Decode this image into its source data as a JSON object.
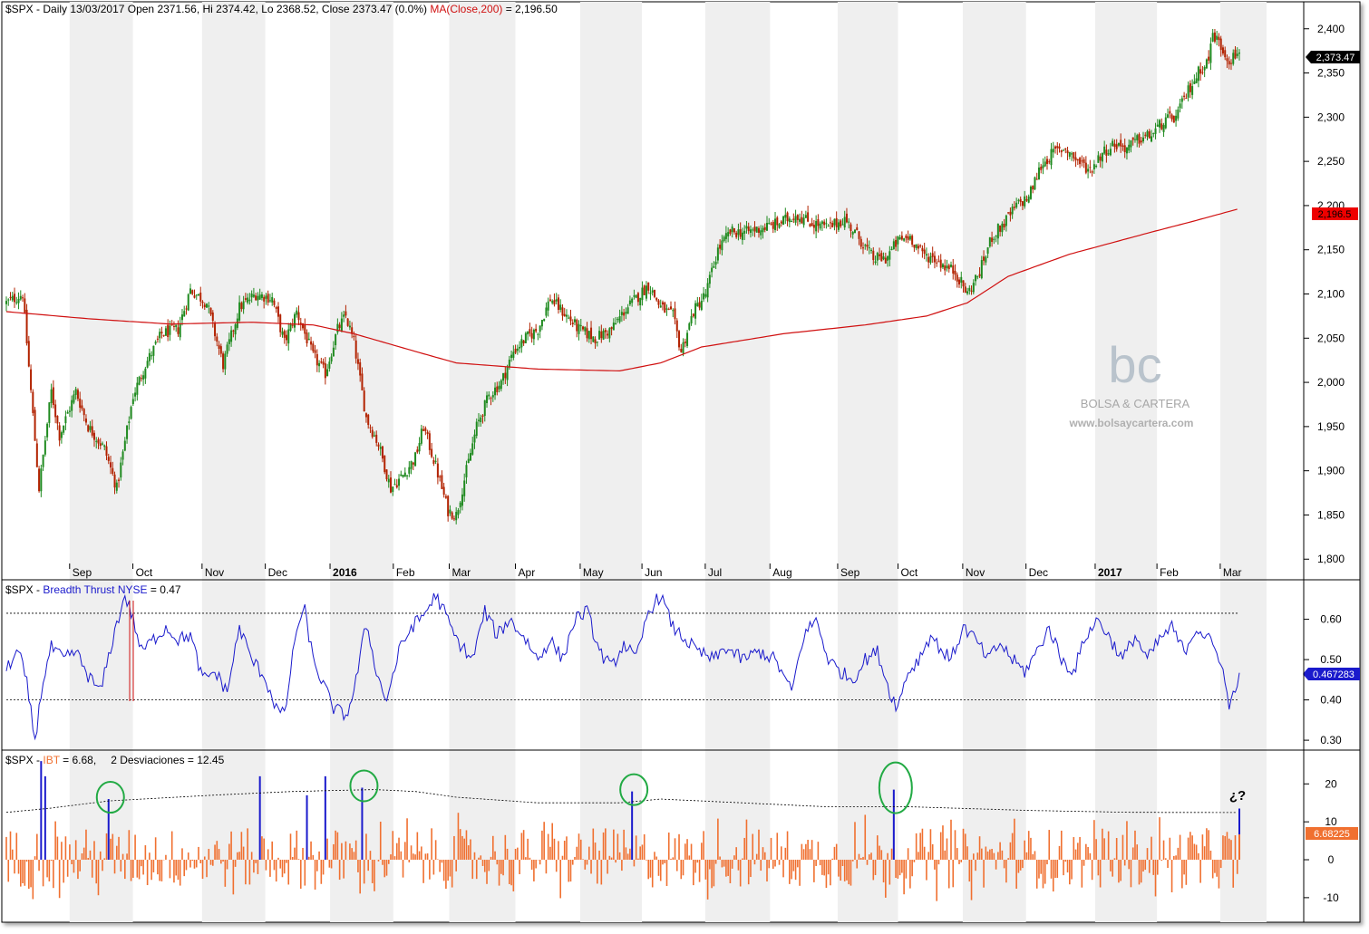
{
  "colors": {
    "up": "#1f8a1f",
    "down": "#b22200",
    "ma": "#d01010",
    "breadth": "#1a1acc",
    "ibt": "#f07030",
    "ibt_spike": "#1a1acc",
    "circle": "#22aa44",
    "band": "#efefef",
    "panel_border": "#000000"
  },
  "panel1": {
    "header_main": "$SPX - Daily 13/03/2017 Open 2371.56, Hi 2374.42, Lo 2368.52, Close 2373.47 (0.0%)",
    "header_ma": "MA(Close,200)",
    "header_ma_value": " = 2,196.50",
    "last_close_label": "2,373.47",
    "ma_label": "2,196.5",
    "watermark_logo": "bc",
    "watermark_name": "BOLSA & CARTERA",
    "watermark_url": "www.bolsaycartera.com"
  },
  "panel2": {
    "header_prefix": "$SPX - ",
    "header_series": "Breadth Thrust NYSE",
    "header_value": " = 0.47",
    "last_value_label": "0.467283"
  },
  "panel3": {
    "header_prefix": "$SPX - ",
    "header_series": "IBT",
    "header_value": " = 6.68,",
    "header_dev": "2 Desviaciones = 12.45",
    "last_value_label": "6.68225",
    "annotation": "¿?"
  },
  "chart_data": [
    {
      "type": "candlestick",
      "ylim": [
        1790,
        2410
      ],
      "yticks": [
        1800,
        1850,
        1900,
        1950,
        2000,
        2050,
        2100,
        2150,
        2200,
        2250,
        2300,
        2350,
        2400
      ],
      "ytick_labels": [
        "1,800",
        "1,850",
        "1,900",
        "1,950",
        "2,000",
        "2,050",
        "2,100",
        "2,150",
        "2,200",
        "2,250",
        "2,300",
        "2,350",
        "2,400"
      ],
      "x_labels": [
        "Sep",
        "Oct",
        "Nov",
        "Dec",
        "2016",
        "Feb",
        "Mar",
        "Apr",
        "May",
        "Jun",
        "Jul",
        "Aug",
        "Sep",
        "Oct",
        "Nov",
        "Dec",
        "2017",
        "Feb",
        "Mar"
      ],
      "x_labels_bold": [
        "2016",
        "2017"
      ],
      "series": [
        {
          "name": "$SPX",
          "close_path": [
            [
              0,
              2090
            ],
            [
              8,
              2100
            ],
            [
              16,
              1880
            ],
            [
              22,
              1990
            ],
            [
              26,
              1940
            ],
            [
              34,
              1990
            ],
            [
              40,
              1950
            ],
            [
              48,
              1925
            ],
            [
              54,
              1880
            ],
            [
              62,
              1985
            ],
            [
              68,
              2020
            ],
            [
              76,
              2055
            ],
            [
              84,
              2060
            ],
            [
              90,
              2105
            ],
            [
              98,
              2090
            ],
            [
              106,
              2020
            ],
            [
              114,
              2085
            ],
            [
              122,
              2100
            ],
            [
              130,
              2095
            ],
            [
              136,
              2045
            ],
            [
              142,
              2080
            ],
            [
              150,
              2030
            ],
            [
              156,
              2010
            ],
            [
              162,
              2060
            ],
            [
              166,
              2075
            ],
            [
              170,
              2045
            ],
            [
              176,
              1960
            ],
            [
              182,
              1930
            ],
            [
              188,
              1880
            ],
            [
              194,
              1895
            ],
            [
              200,
              1915
            ],
            [
              204,
              1950
            ],
            [
              210,
              1905
            ],
            [
              216,
              1855
            ],
            [
              220,
              1850
            ],
            [
              224,
              1890
            ],
            [
              230,
              1950
            ],
            [
              236,
              1985
            ],
            [
              242,
              2000
            ],
            [
              248,
              2035
            ],
            [
              254,
              2050
            ],
            [
              260,
              2060
            ],
            [
              266,
              2095
            ],
            [
              272,
              2080
            ],
            [
              280,
              2060
            ],
            [
              288,
              2050
            ],
            [
              296,
              2060
            ],
            [
              302,
              2080
            ],
            [
              308,
              2095
            ],
            [
              314,
              2110
            ],
            [
              320,
              2085
            ],
            [
              326,
              2075
            ],
            [
              330,
              2035
            ],
            [
              336,
              2080
            ],
            [
              342,
              2100
            ],
            [
              348,
              2150
            ],
            [
              354,
              2170
            ],
            [
              362,
              2170
            ],
            [
              370,
              2175
            ],
            [
              378,
              2180
            ],
            [
              386,
              2190
            ],
            [
              394,
              2180
            ],
            [
              402,
              2175
            ],
            [
              410,
              2185
            ],
            [
              418,
              2160
            ],
            [
              424,
              2140
            ],
            [
              430,
              2140
            ],
            [
              436,
              2160
            ],
            [
              442,
              2165
            ],
            [
              448,
              2145
            ],
            [
              454,
              2140
            ],
            [
              460,
              2130
            ],
            [
              464,
              2125
            ],
            [
              470,
              2100
            ],
            [
              476,
              2125
            ],
            [
              482,
              2165
            ],
            [
              488,
              2180
            ],
            [
              494,
              2200
            ],
            [
              500,
              2210
            ],
            [
              506,
              2245
            ],
            [
              512,
              2260
            ],
            [
              518,
              2265
            ],
            [
              524,
              2250
            ],
            [
              530,
              2240
            ],
            [
              536,
              2260
            ],
            [
              542,
              2270
            ],
            [
              548,
              2265
            ],
            [
              554,
              2275
            ],
            [
              560,
              2280
            ],
            [
              566,
              2295
            ],
            [
              572,
              2300
            ],
            [
              578,
              2330
            ],
            [
              584,
              2355
            ],
            [
              588,
              2365
            ],
            [
              590,
              2395
            ],
            [
              594,
              2380
            ],
            [
              598,
              2365
            ],
            [
              603,
              2373
            ]
          ]
        },
        {
          "name": "MA(Close,200)",
          "values": [
            [
              0,
              2080
            ],
            [
              40,
              2072
            ],
            [
              80,
              2066
            ],
            [
              120,
              2068
            ],
            [
              150,
              2065
            ],
            [
              170,
              2055
            ],
            [
              200,
              2035
            ],
            [
              220,
              2022
            ],
            [
              260,
              2015
            ],
            [
              300,
              2013
            ],
            [
              320,
              2022
            ],
            [
              340,
              2040
            ],
            [
              380,
              2055
            ],
            [
              420,
              2065
            ],
            [
              450,
              2075
            ],
            [
              470,
              2090
            ],
            [
              490,
              2120
            ],
            [
              520,
              2145
            ],
            [
              560,
              2170
            ],
            [
              580,
              2182
            ],
            [
              603,
              2196.5
            ]
          ]
        }
      ]
    },
    {
      "type": "line",
      "ylim": [
        0.28,
        0.68
      ],
      "yticks": [
        0.3,
        0.4,
        0.5,
        0.6
      ],
      "ytick_labels": [
        "0.30",
        "0.40",
        "0.50",
        "0.60"
      ],
      "reference_lines": [
        0.4,
        0.615
      ],
      "series": [
        {
          "name": "Breadth Thrust NYSE",
          "values": [
            [
              0,
              0.48
            ],
            [
              6,
              0.52
            ],
            [
              10,
              0.44
            ],
            [
              14,
              0.3
            ],
            [
              18,
              0.45
            ],
            [
              22,
              0.53
            ],
            [
              28,
              0.5
            ],
            [
              34,
              0.52
            ],
            [
              40,
              0.46
            ],
            [
              46,
              0.42
            ],
            [
              52,
              0.55
            ],
            [
              58,
              0.66
            ],
            [
              62,
              0.6
            ],
            [
              66,
              0.52
            ],
            [
              72,
              0.55
            ],
            [
              78,
              0.58
            ],
            [
              84,
              0.55
            ],
            [
              90,
              0.56
            ],
            [
              96,
              0.45
            ],
            [
              102,
              0.47
            ],
            [
              108,
              0.42
            ],
            [
              114,
              0.58
            ],
            [
              120,
              0.5
            ],
            [
              126,
              0.46
            ],
            [
              132,
              0.38
            ],
            [
              136,
              0.36
            ],
            [
              142,
              0.58
            ],
            [
              146,
              0.62
            ],
            [
              150,
              0.5
            ],
            [
              154,
              0.45
            ],
            [
              160,
              0.38
            ],
            [
              166,
              0.36
            ],
            [
              170,
              0.42
            ],
            [
              176,
              0.59
            ],
            [
              182,
              0.45
            ],
            [
              186,
              0.4
            ],
            [
              192,
              0.52
            ],
            [
              198,
              0.58
            ],
            [
              204,
              0.61
            ],
            [
              210,
              0.66
            ],
            [
              214,
              0.62
            ],
            [
              220,
              0.55
            ],
            [
              228,
              0.5
            ],
            [
              234,
              0.62
            ],
            [
              240,
              0.56
            ],
            [
              246,
              0.6
            ],
            [
              254,
              0.55
            ],
            [
              260,
              0.5
            ],
            [
              266,
              0.55
            ],
            [
              272,
              0.5
            ],
            [
              278,
              0.6
            ],
            [
              284,
              0.62
            ],
            [
              290,
              0.52
            ],
            [
              296,
              0.48
            ],
            [
              302,
              0.54
            ],
            [
              308,
              0.5
            ],
            [
              314,
              0.62
            ],
            [
              320,
              0.66
            ],
            [
              326,
              0.58
            ],
            [
              332,
              0.55
            ],
            [
              338,
              0.52
            ],
            [
              346,
              0.5
            ],
            [
              352,
              0.53
            ],
            [
              360,
              0.5
            ],
            [
              368,
              0.52
            ],
            [
              376,
              0.5
            ],
            [
              384,
              0.42
            ],
            [
              390,
              0.56
            ],
            [
              396,
              0.6
            ],
            [
              402,
              0.5
            ],
            [
              408,
              0.47
            ],
            [
              414,
              0.45
            ],
            [
              420,
              0.5
            ],
            [
              426,
              0.52
            ],
            [
              432,
              0.42
            ],
            [
              436,
              0.38
            ],
            [
              440,
              0.46
            ],
            [
              446,
              0.5
            ],
            [
              452,
              0.56
            ],
            [
              458,
              0.52
            ],
            [
              462,
              0.5
            ],
            [
              468,
              0.58
            ],
            [
              474,
              0.55
            ],
            [
              480,
              0.5
            ],
            [
              486,
              0.54
            ],
            [
              492,
              0.5
            ],
            [
              498,
              0.47
            ],
            [
              504,
              0.52
            ],
            [
              510,
              0.58
            ],
            [
              516,
              0.5
            ],
            [
              522,
              0.47
            ],
            [
              528,
              0.56
            ],
            [
              534,
              0.6
            ],
            [
              540,
              0.55
            ],
            [
              546,
              0.5
            ],
            [
              552,
              0.56
            ],
            [
              558,
              0.5
            ],
            [
              564,
              0.55
            ],
            [
              570,
              0.58
            ],
            [
              576,
              0.52
            ],
            [
              582,
              0.58
            ],
            [
              588,
              0.55
            ],
            [
              594,
              0.5
            ],
            [
              598,
              0.38
            ],
            [
              603,
              0.467283
            ]
          ]
        }
      ]
    },
    {
      "type": "bar",
      "ylim": [
        -16,
        27
      ],
      "yticks": [
        -10,
        0,
        10,
        20
      ],
      "ytick_labels": [
        "-10",
        "0",
        "10",
        "20"
      ],
      "threshold_series": {
        "name": "2 Desviaciones",
        "values": [
          [
            0,
            12.5
          ],
          [
            20,
            13.5
          ],
          [
            50,
            15.5
          ],
          [
            100,
            17
          ],
          [
            140,
            18
          ],
          [
            180,
            18.5
          ],
          [
            200,
            18
          ],
          [
            220,
            16.5
          ],
          [
            260,
            15
          ],
          [
            300,
            15
          ],
          [
            320,
            16
          ],
          [
            360,
            15
          ],
          [
            400,
            14
          ],
          [
            440,
            14
          ],
          [
            470,
            13.5
          ],
          [
            500,
            13
          ],
          [
            550,
            12.5
          ],
          [
            603,
            12.45
          ]
        ]
      },
      "series": [
        {
          "name": "IBT",
          "spikes": [
            [
              17,
              26
            ],
            [
              19,
              22
            ],
            [
              50,
              16
            ],
            [
              124,
              22
            ],
            [
              147,
              17
            ],
            [
              156,
              22
            ],
            [
              174,
              19
            ],
            [
              306,
              18
            ],
            [
              434,
              18.5
            ],
            [
              603,
              13.5
            ]
          ],
          "last_value": 6.68
        }
      ],
      "highlighted_circles": [
        50,
        174,
        306,
        434
      ]
    }
  ]
}
